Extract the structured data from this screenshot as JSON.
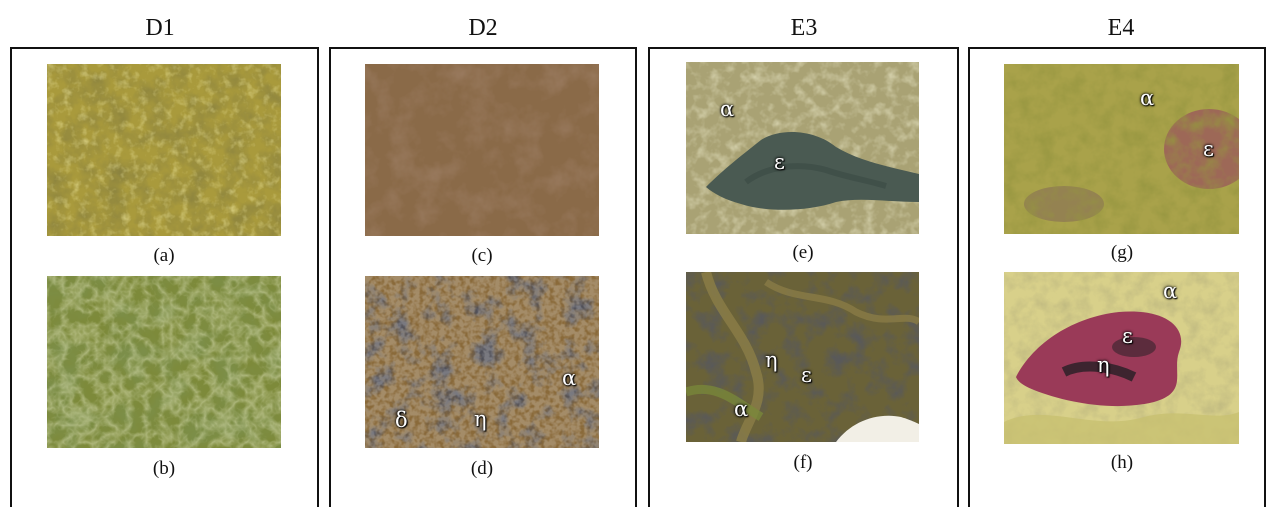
{
  "columns": [
    {
      "title": "D1"
    },
    {
      "title": "D2"
    },
    {
      "title": "E3"
    },
    {
      "title": "E4"
    }
  ],
  "captions": {
    "a": "(a)",
    "b": "(b)",
    "c": "(c)",
    "d": "(d)",
    "e": "(e)",
    "f": "(f)",
    "g": "(g)",
    "h": "(h)"
  },
  "labels": {
    "d_alpha": "α",
    "d_delta": "δ",
    "d_eta": "η",
    "e_alpha": "α",
    "e_epsilon": "ε",
    "f_eta": "η",
    "f_epsilon": "ε",
    "f_alpha": "α",
    "g_alpha": "α",
    "g_epsilon": "ε",
    "h_alpha": "α",
    "h_epsilon": "ε",
    "h_eta": "η"
  },
  "colors": {
    "yellow_mat": "#a99a3c",
    "green_mat": "#7d8a3a",
    "brown_sediment": "#8a6a48",
    "black_mat": "#1e1e22",
    "pink_mat": "#9a3a58",
    "water": "#4a5a52"
  }
}
